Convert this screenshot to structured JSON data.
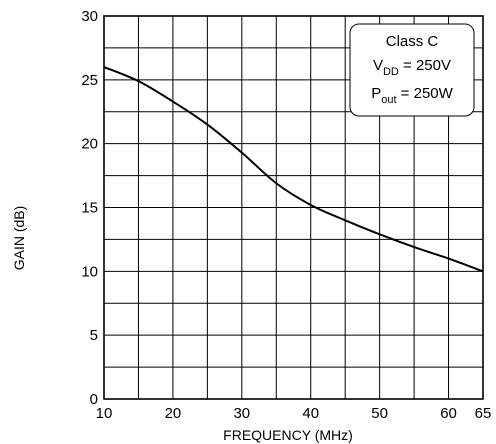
{
  "chart_data": {
    "type": "line",
    "xlabel": "FREQUENCY (MHz)",
    "ylabel": "GAIN (dB)",
    "xlim": [
      10,
      65
    ],
    "ylim": [
      0,
      30
    ],
    "x_ticks": [
      10,
      20,
      30,
      40,
      50,
      60,
      65
    ],
    "y_ticks": [
      0,
      5,
      10,
      15,
      20,
      25,
      30
    ],
    "x_tick_labels": [
      "10",
      "20",
      "30",
      "40",
      "50",
      "60",
      "65"
    ],
    "y_tick_labels": [
      "0",
      "5",
      "10",
      "15",
      "20",
      "25",
      "30"
    ],
    "grid": true,
    "series": [
      {
        "x": [
          10,
          15,
          20,
          25,
          30,
          35,
          40,
          45,
          50,
          55,
          60,
          65
        ],
        "y": [
          26.0,
          24.9,
          23.3,
          21.5,
          19.3,
          16.9,
          15.2,
          14.0,
          12.9,
          11.9,
          11.0,
          10.0
        ]
      }
    ],
    "annotation": {
      "line1": "Class C",
      "line2_main": "V",
      "line2_sub": "DD",
      "line2_rest": " = 250V",
      "line3_main": "P",
      "line3_sub": "out",
      "line3_rest": " = 250W"
    }
  }
}
